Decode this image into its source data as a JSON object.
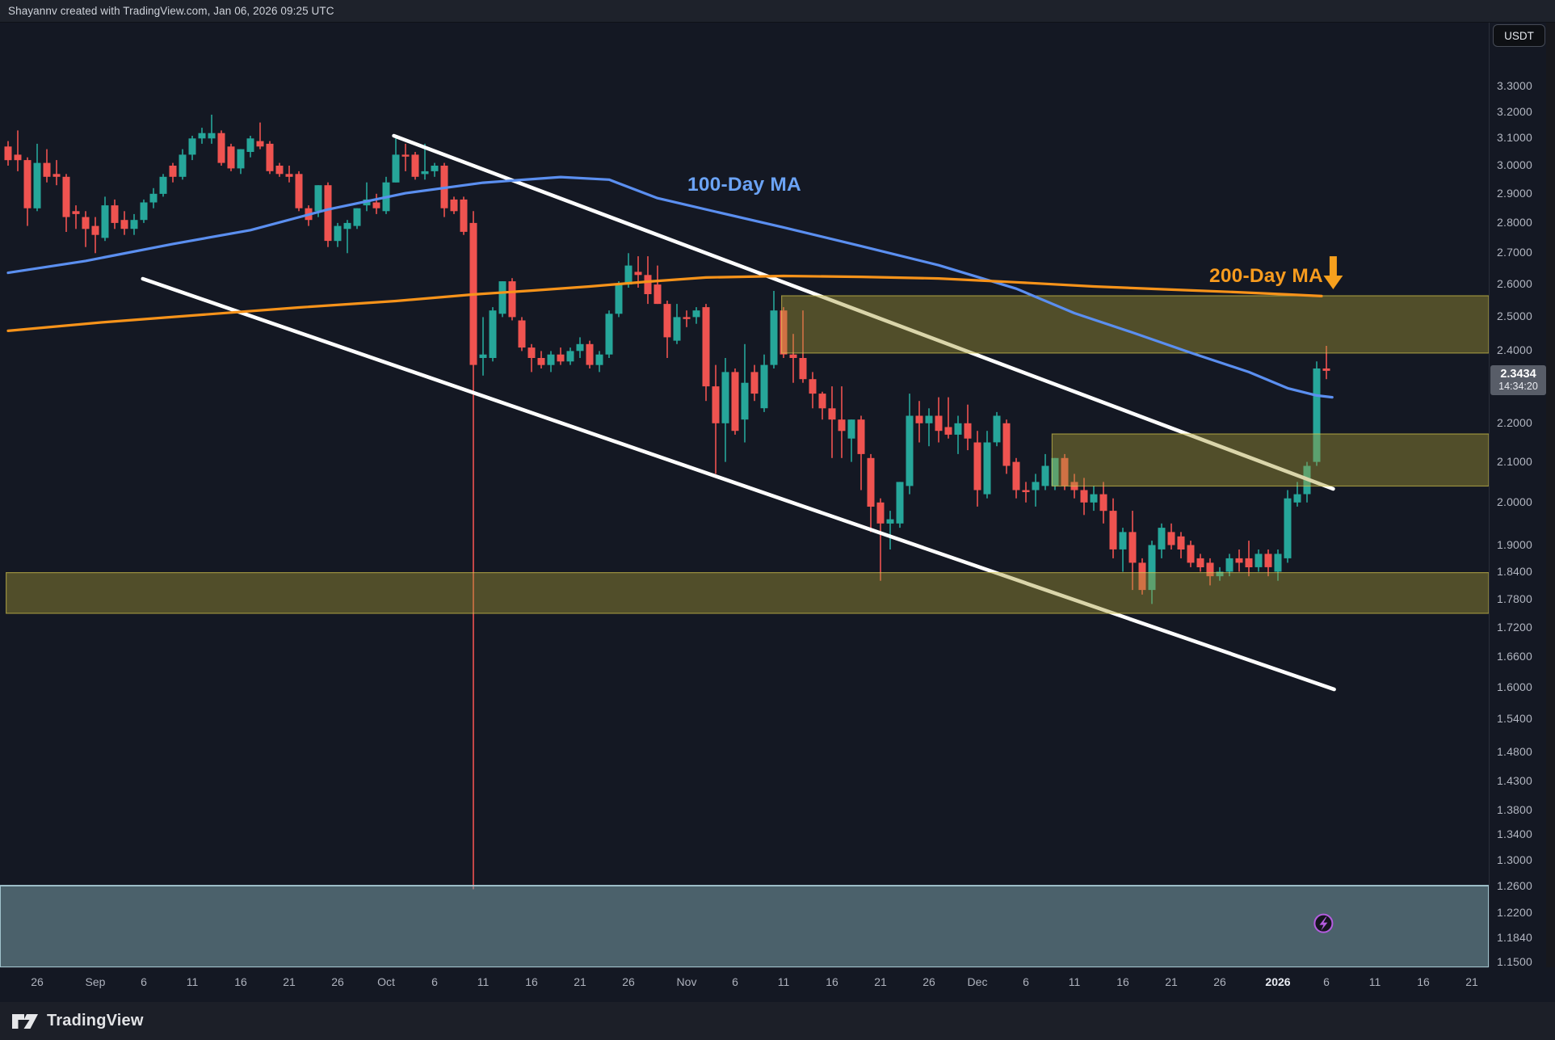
{
  "title_bar": {
    "attribution": "Shayannv created with TradingView.com, Jan 06, 2026 09:25 UTC"
  },
  "symbol_chip": {
    "label": "USDT"
  },
  "price_tag": {
    "value": "2.3434",
    "countdown": "14:34:20",
    "price": 2.3434,
    "box_color": "#585d68"
  },
  "footer": {
    "brand": "TradingView"
  },
  "colors": {
    "background": "#141823",
    "up": "#26a69a",
    "down": "#ef5350",
    "ma100": "#5b8ff0",
    "ma200": "#f7931a",
    "trendline": "#ffffff",
    "zone_fill": "rgba(166,156,52,0.42)",
    "zone_edge": "rgba(220,205,80,0.6)",
    "demand_fill": "rgba(129,169,180,0.5)",
    "demand_edge": "rgba(170,205,215,0.9)",
    "axis_text": "#b2b6c1",
    "arrow": "#f7a01d",
    "lightning": "#b55ce0"
  },
  "annotations": {
    "ma100_label": {
      "text": "100-Day MA",
      "day": 75,
      "price": 2.93
    },
    "ma200_label": {
      "text": "200-Day MA",
      "day": 128.9,
      "price": 2.62
    },
    "down_arrow": {
      "day": 136.7,
      "price_top": 2.69,
      "price_tip": 2.585
    },
    "lightning_badge": {
      "day": 135.7,
      "price": 1.205
    }
  },
  "price_axis_labels": [
    {
      "text": "3.3000",
      "price": 3.3
    },
    {
      "text": "3.2000",
      "price": 3.2
    },
    {
      "text": "3.1000",
      "price": 3.1
    },
    {
      "text": "3.0000",
      "price": 3.0
    },
    {
      "text": "2.9000",
      "price": 2.9
    },
    {
      "text": "2.8000",
      "price": 2.8
    },
    {
      "text": "2.7000",
      "price": 2.7
    },
    {
      "text": "2.6000",
      "price": 2.6
    },
    {
      "text": "2.5000",
      "price": 2.5
    },
    {
      "text": "2.4000",
      "price": 2.4
    },
    {
      "text": "2.2000",
      "price": 2.2
    },
    {
      "text": "2.1000",
      "price": 2.1
    },
    {
      "text": "2.0000",
      "price": 2.0
    },
    {
      "text": "1.9000",
      "price": 1.9
    },
    {
      "text": "1.8400",
      "price": 1.84
    },
    {
      "text": "1.7800",
      "price": 1.78
    },
    {
      "text": "1.7200",
      "price": 1.72
    },
    {
      "text": "1.6600",
      "price": 1.66
    },
    {
      "text": "1.6000",
      "price": 1.6
    },
    {
      "text": "1.5400",
      "price": 1.54
    },
    {
      "text": "1.4800",
      "price": 1.48
    },
    {
      "text": "1.4300",
      "price": 1.43
    },
    {
      "text": "1.3800",
      "price": 1.38
    },
    {
      "text": "1.3400",
      "price": 1.34
    },
    {
      "text": "1.3000",
      "price": 1.3
    },
    {
      "text": "1.2600",
      "price": 1.26
    },
    {
      "text": "1.2200",
      "price": 1.22
    },
    {
      "text": "1.1840",
      "price": 1.184
    },
    {
      "text": "1.1500",
      "price": 1.15
    }
  ],
  "time_axis_labels": [
    {
      "text": "26",
      "day": 3
    },
    {
      "text": "Sep",
      "day": 9
    },
    {
      "text": "6",
      "day": 14
    },
    {
      "text": "11",
      "day": 19
    },
    {
      "text": "16",
      "day": 24
    },
    {
      "text": "21",
      "day": 29
    },
    {
      "text": "26",
      "day": 34
    },
    {
      "text": "Oct",
      "day": 39
    },
    {
      "text": "6",
      "day": 44
    },
    {
      "text": "11",
      "day": 49
    },
    {
      "text": "16",
      "day": 54
    },
    {
      "text": "21",
      "day": 59
    },
    {
      "text": "26",
      "day": 64
    },
    {
      "text": "Nov",
      "day": 70
    },
    {
      "text": "6",
      "day": 75
    },
    {
      "text": "11",
      "day": 80
    },
    {
      "text": "16",
      "day": 85
    },
    {
      "text": "21",
      "day": 90
    },
    {
      "text": "26",
      "day": 95
    },
    {
      "text": "Dec",
      "day": 100
    },
    {
      "text": "6",
      "day": 105
    },
    {
      "text": "11",
      "day": 110
    },
    {
      "text": "16",
      "day": 115
    },
    {
      "text": "21",
      "day": 120
    },
    {
      "text": "26",
      "day": 125
    },
    {
      "text": "2026",
      "day": 131,
      "strong": true
    },
    {
      "text": "6",
      "day": 136
    },
    {
      "text": "11",
      "day": 141
    },
    {
      "text": "16",
      "day": 146
    },
    {
      "text": "21",
      "day": 151
    }
  ],
  "chart_data": {
    "type": "candlestick",
    "symbol_quote": "USDT",
    "scale": "log",
    "x_axis": "daily candles, Aug 23 2025 (index 0) through Jan 6 2026 (index 136)",
    "ylim": [
      1.143,
      3.38
    ],
    "candles_ohlc": [
      [
        3.07,
        3.09,
        3.0,
        3.02
      ],
      [
        3.04,
        3.13,
        2.98,
        3.02
      ],
      [
        3.02,
        3.03,
        2.79,
        2.85
      ],
      [
        2.85,
        3.08,
        2.84,
        3.01
      ],
      [
        3.01,
        3.06,
        2.94,
        2.96
      ],
      [
        2.97,
        3.02,
        2.93,
        2.96
      ],
      [
        2.96,
        2.97,
        2.77,
        2.82
      ],
      [
        2.84,
        2.86,
        2.78,
        2.83
      ],
      [
        2.82,
        2.84,
        2.72,
        2.78
      ],
      [
        2.79,
        2.82,
        2.7,
        2.76
      ],
      [
        2.75,
        2.89,
        2.74,
        2.86
      ],
      [
        2.86,
        2.88,
        2.78,
        2.8
      ],
      [
        2.81,
        2.84,
        2.76,
        2.78
      ],
      [
        2.78,
        2.83,
        2.76,
        2.81
      ],
      [
        2.81,
        2.88,
        2.8,
        2.87
      ],
      [
        2.87,
        2.92,
        2.85,
        2.9
      ],
      [
        2.9,
        2.97,
        2.89,
        2.96
      ],
      [
        3.0,
        3.01,
        2.94,
        2.96
      ],
      [
        2.96,
        3.06,
        2.95,
        3.04
      ],
      [
        3.04,
        3.11,
        3.02,
        3.1
      ],
      [
        3.1,
        3.14,
        3.08,
        3.12
      ],
      [
        3.1,
        3.19,
        3.08,
        3.12
      ],
      [
        3.12,
        3.13,
        3.0,
        3.01
      ],
      [
        3.07,
        3.08,
        2.98,
        2.99
      ],
      [
        2.99,
        3.06,
        2.97,
        3.06
      ],
      [
        3.05,
        3.11,
        3.03,
        3.1
      ],
      [
        3.09,
        3.16,
        3.06,
        3.07
      ],
      [
        3.08,
        3.09,
        2.97,
        2.98
      ],
      [
        3.0,
        3.01,
        2.96,
        2.97
      ],
      [
        2.97,
        3.0,
        2.94,
        2.96
      ],
      [
        2.97,
        2.98,
        2.84,
        2.85
      ],
      [
        2.85,
        2.86,
        2.79,
        2.81
      ],
      [
        2.84,
        2.93,
        2.82,
        2.93
      ],
      [
        2.93,
        2.94,
        2.72,
        2.74
      ],
      [
        2.74,
        2.8,
        2.72,
        2.79
      ],
      [
        2.78,
        2.81,
        2.7,
        2.8
      ],
      [
        2.79,
        2.85,
        2.78,
        2.85
      ],
      [
        2.86,
        2.94,
        2.84,
        2.88
      ],
      [
        2.87,
        2.9,
        2.83,
        2.85
      ],
      [
        2.84,
        2.96,
        2.83,
        2.94
      ],
      [
        2.94,
        3.1,
        2.94,
        3.04
      ],
      [
        3.04,
        3.08,
        2.98,
        3.035
      ],
      [
        3.04,
        3.05,
        2.95,
        2.96
      ],
      [
        2.97,
        3.08,
        2.95,
        2.98
      ],
      [
        2.98,
        3.01,
        2.96,
        3.0
      ],
      [
        3.0,
        3.01,
        2.82,
        2.85
      ],
      [
        2.88,
        2.89,
        2.83,
        2.84
      ],
      [
        2.88,
        2.89,
        2.76,
        2.77
      ],
      [
        2.8,
        2.84,
        1.2554,
        2.36
      ],
      [
        2.38,
        2.5,
        2.33,
        2.39
      ],
      [
        2.38,
        2.53,
        2.37,
        2.52
      ],
      [
        2.51,
        2.61,
        2.5,
        2.61
      ],
      [
        2.61,
        2.62,
        2.49,
        2.5
      ],
      [
        2.49,
        2.5,
        2.4,
        2.41
      ],
      [
        2.41,
        2.42,
        2.34,
        2.38
      ],
      [
        2.38,
        2.4,
        2.35,
        2.36
      ],
      [
        2.36,
        2.4,
        2.34,
        2.39
      ],
      [
        2.39,
        2.41,
        2.36,
        2.37
      ],
      [
        2.37,
        2.41,
        2.36,
        2.4
      ],
      [
        2.4,
        2.44,
        2.38,
        2.42
      ],
      [
        2.42,
        2.43,
        2.35,
        2.36
      ],
      [
        2.36,
        2.4,
        2.34,
        2.39
      ],
      [
        2.39,
        2.52,
        2.38,
        2.51
      ],
      [
        2.51,
        2.61,
        2.5,
        2.6
      ],
      [
        2.6,
        2.7,
        2.59,
        2.66
      ],
      [
        2.64,
        2.69,
        2.59,
        2.63
      ],
      [
        2.63,
        2.69,
        2.54,
        2.57
      ],
      [
        2.6,
        2.66,
        2.54,
        2.54
      ],
      [
        2.54,
        2.55,
        2.38,
        2.44
      ],
      [
        2.43,
        2.54,
        2.42,
        2.5
      ],
      [
        2.5,
        2.52,
        2.47,
        2.495
      ],
      [
        2.5,
        2.53,
        2.48,
        2.52
      ],
      [
        2.53,
        2.54,
        2.26,
        2.3
      ],
      [
        2.3,
        2.36,
        2.07,
        2.2
      ],
      [
        2.2,
        2.38,
        2.1,
        2.34
      ],
      [
        2.34,
        2.35,
        2.17,
        2.18
      ],
      [
        2.21,
        2.42,
        2.15,
        2.31
      ],
      [
        2.34,
        2.36,
        2.26,
        2.28
      ],
      [
        2.24,
        2.39,
        2.23,
        2.36
      ],
      [
        2.36,
        2.58,
        2.35,
        2.52
      ],
      [
        2.52,
        2.53,
        2.38,
        2.39
      ],
      [
        2.39,
        2.45,
        2.31,
        2.38
      ],
      [
        2.38,
        2.52,
        2.31,
        2.32
      ],
      [
        2.32,
        2.34,
        2.24,
        2.28
      ],
      [
        2.28,
        2.285,
        2.21,
        2.24
      ],
      [
        2.24,
        2.3,
        2.11,
        2.21
      ],
      [
        2.21,
        2.3,
        2.11,
        2.18
      ],
      [
        2.16,
        2.21,
        2.1,
        2.21
      ],
      [
        2.21,
        2.22,
        2.03,
        2.12
      ],
      [
        2.11,
        2.12,
        1.93,
        1.99
      ],
      [
        2.0,
        2.01,
        1.82,
        1.95
      ],
      [
        1.95,
        1.98,
        1.89,
        1.96
      ],
      [
        1.95,
        2.05,
        1.94,
        2.05
      ],
      [
        2.04,
        2.28,
        2.02,
        2.22
      ],
      [
        2.22,
        2.26,
        2.15,
        2.2
      ],
      [
        2.2,
        2.24,
        2.14,
        2.22
      ],
      [
        2.22,
        2.27,
        2.15,
        2.18
      ],
      [
        2.19,
        2.27,
        2.16,
        2.17
      ],
      [
        2.17,
        2.22,
        2.12,
        2.2
      ],
      [
        2.2,
        2.25,
        2.13,
        2.16
      ],
      [
        2.15,
        2.18,
        1.99,
        2.03
      ],
      [
        2.02,
        2.18,
        2.01,
        2.15
      ],
      [
        2.15,
        2.23,
        2.14,
        2.22
      ],
      [
        2.2,
        2.21,
        2.07,
        2.09
      ],
      [
        2.1,
        2.11,
        2.01,
        2.03
      ],
      [
        2.03,
        2.05,
        2.0,
        2.025
      ],
      [
        2.03,
        2.07,
        1.99,
        2.05
      ],
      [
        2.04,
        2.12,
        2.03,
        2.09
      ],
      [
        2.04,
        2.11,
        2.03,
        2.11
      ],
      [
        2.11,
        2.12,
        2.03,
        2.04
      ],
      [
        2.05,
        2.07,
        2.01,
        2.03
      ],
      [
        2.03,
        2.06,
        1.97,
        2.0
      ],
      [
        2.0,
        2.04,
        1.98,
        2.02
      ],
      [
        2.02,
        2.05,
        1.95,
        1.98
      ],
      [
        1.98,
        2.01,
        1.87,
        1.89
      ],
      [
        1.89,
        1.94,
        1.84,
        1.93
      ],
      [
        1.93,
        1.98,
        1.8,
        1.86
      ],
      [
        1.86,
        1.87,
        1.79,
        1.8
      ],
      [
        1.8,
        1.91,
        1.77,
        1.9
      ],
      [
        1.89,
        1.95,
        1.87,
        1.94
      ],
      [
        1.93,
        1.95,
        1.89,
        1.9
      ],
      [
        1.92,
        1.93,
        1.87,
        1.89
      ],
      [
        1.9,
        1.91,
        1.85,
        1.86
      ],
      [
        1.87,
        1.88,
        1.84,
        1.85
      ],
      [
        1.86,
        1.87,
        1.81,
        1.83
      ],
      [
        1.83,
        1.85,
        1.82,
        1.84
      ],
      [
        1.84,
        1.88,
        1.83,
        1.87
      ],
      [
        1.87,
        1.89,
        1.84,
        1.86
      ],
      [
        1.87,
        1.91,
        1.83,
        1.85
      ],
      [
        1.85,
        1.89,
        1.84,
        1.88
      ],
      [
        1.88,
        1.89,
        1.83,
        1.85
      ],
      [
        1.84,
        1.89,
        1.82,
        1.88
      ],
      [
        1.87,
        2.03,
        1.86,
        2.01
      ],
      [
        2.0,
        2.05,
        1.99,
        2.02
      ],
      [
        2.02,
        2.1,
        2.0,
        2.09
      ],
      [
        2.1,
        2.37,
        2.09,
        2.35
      ],
      [
        2.35,
        2.415,
        2.32,
        2.3434
      ]
    ],
    "series": [
      {
        "name": "100-Day MA",
        "points_day_value": [
          [
            0,
            2.637
          ],
          [
            8,
            2.675
          ],
          [
            17,
            2.73
          ],
          [
            25,
            2.776
          ],
          [
            33,
            2.846
          ],
          [
            41,
            2.902
          ],
          [
            49,
            2.939
          ],
          [
            57,
            2.959
          ],
          [
            62,
            2.95
          ],
          [
            67,
            2.885
          ],
          [
            73,
            2.838
          ],
          [
            80,
            2.785
          ],
          [
            88,
            2.723
          ],
          [
            96,
            2.661
          ],
          [
            104,
            2.587
          ],
          [
            110,
            2.512
          ],
          [
            116,
            2.454
          ],
          [
            122,
            2.395
          ],
          [
            128,
            2.34
          ],
          [
            132,
            2.295
          ],
          [
            135,
            2.275
          ],
          [
            136.6,
            2.27
          ]
        ]
      },
      {
        "name": "200-Day MA",
        "points_day_value": [
          [
            0,
            2.459
          ],
          [
            10,
            2.485
          ],
          [
            20,
            2.507
          ],
          [
            30,
            2.529
          ],
          [
            40,
            2.549
          ],
          [
            48,
            2.569
          ],
          [
            54,
            2.581
          ],
          [
            60,
            2.594
          ],
          [
            66,
            2.609
          ],
          [
            72,
            2.622
          ],
          [
            80,
            2.627
          ],
          [
            88,
            2.624
          ],
          [
            96,
            2.619
          ],
          [
            104,
            2.607
          ],
          [
            112,
            2.594
          ],
          [
            120,
            2.584
          ],
          [
            126,
            2.577
          ],
          [
            132,
            2.569
          ],
          [
            135.5,
            2.564
          ]
        ]
      }
    ],
    "trendlines": [
      {
        "name": "upper-channel-line",
        "from_day": 39.8,
        "from_price": 3.11,
        "to_day": 136.7,
        "to_price": 2.033
      },
      {
        "name": "lower-channel-line",
        "from_day": 13.9,
        "from_price": 2.618,
        "to_day": 136.8,
        "to_price": 1.597
      }
    ],
    "zones": [
      {
        "name": "resistance-zone-upper",
        "from_day": 79.8,
        "price_top": 2.565,
        "price_bottom": 2.394
      },
      {
        "name": "resistance-zone-mid",
        "from_day": 107.7,
        "price_top": 2.172,
        "price_bottom": 2.04
      },
      {
        "name": "support-zone-low",
        "from_day": -0.2,
        "price_top": 1.838,
        "price_bottom": 1.75
      },
      {
        "name": "demand-zone-blue",
        "from_day": -0.9,
        "price_top": 1.261,
        "price_bottom": 1.143
      }
    ]
  }
}
